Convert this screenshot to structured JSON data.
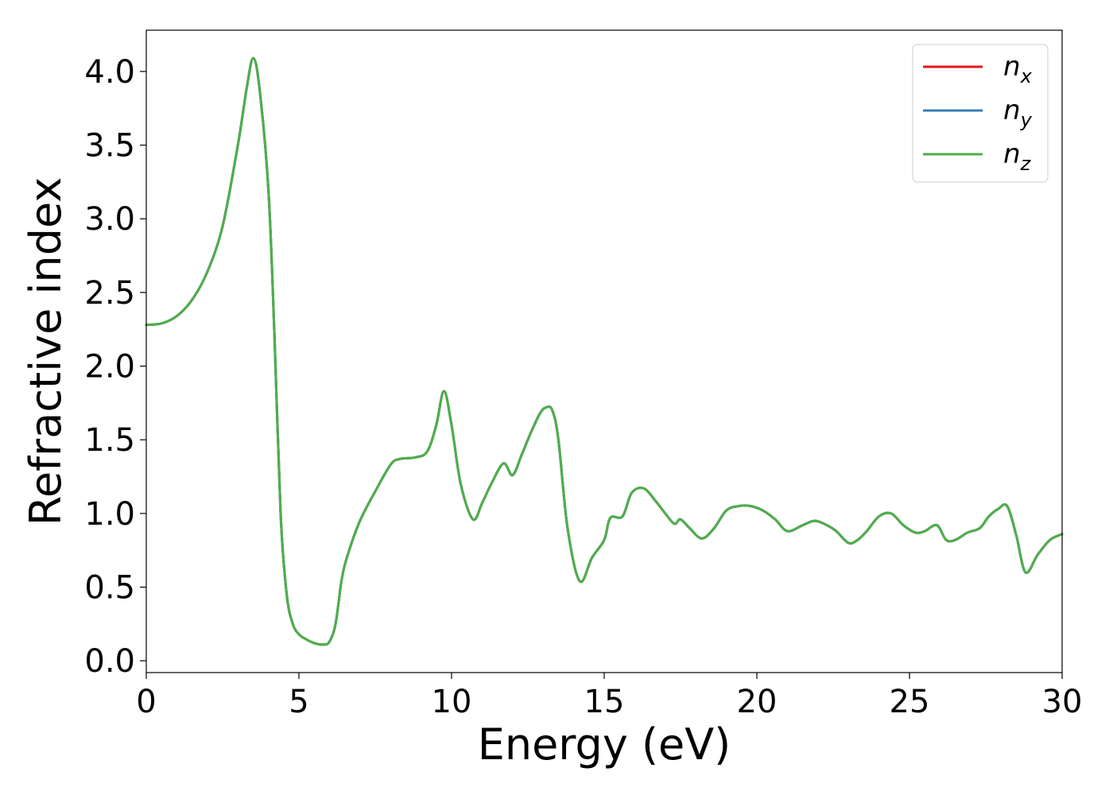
{
  "chart_data": {
    "type": "line",
    "title": "",
    "xlabel": "Energy (eV)",
    "ylabel": "Refractive index",
    "xlim": [
      0,
      30
    ],
    "ylim": [
      -0.08,
      4.28
    ],
    "x_ticks": [
      0,
      5,
      10,
      15,
      20,
      25,
      30
    ],
    "x_tick_labels": [
      "0",
      "5",
      "10",
      "15",
      "20",
      "25",
      "30"
    ],
    "y_ticks": [
      0.0,
      0.5,
      1.0,
      1.5,
      2.0,
      2.5,
      3.0,
      3.5,
      4.0
    ],
    "y_tick_labels": [
      "0.0",
      "0.5",
      "1.0",
      "1.5",
      "2.0",
      "2.5",
      "3.0",
      "3.5",
      "4.0"
    ],
    "grid": false,
    "legend_position": "top-right",
    "series": [
      {
        "name": "n_x",
        "label_base": "n",
        "label_sub": "x",
        "color": "#e41a1c",
        "x": [
          0,
          0.5,
          1,
          1.5,
          2,
          2.5,
          3,
          3.3,
          3.5,
          3.7,
          4,
          4.2,
          4.4,
          4.6,
          4.8,
          5,
          5.2,
          5.5,
          5.8,
          6,
          6.2,
          6.4,
          6.6,
          7,
          7.5,
          8,
          8.3,
          8.8,
          9.2,
          9.5,
          9.75,
          10,
          10.3,
          10.7,
          11,
          11.3,
          11.7,
          12,
          12.3,
          12.6,
          12.9,
          13.1,
          13.3,
          13.5,
          13.8,
          14.2,
          14.6,
          15,
          15.2,
          15.6,
          15.9,
          16.3,
          16.7,
          17,
          17.3,
          17.5,
          17.8,
          18.2,
          18.6,
          19,
          19.4,
          19.8,
          20.2,
          20.6,
          21,
          21.5,
          21.9,
          22.3,
          22.6,
          23,
          23.3,
          23.6,
          24,
          24.4,
          24.8,
          25.2,
          25.5,
          25.9,
          26.2,
          26.5,
          26.9,
          27.3,
          27.6,
          27.9,
          28.2,
          28.5,
          28.8,
          29.2,
          29.6,
          30
        ],
        "y": [
          2.28,
          2.29,
          2.34,
          2.45,
          2.64,
          2.95,
          3.5,
          3.9,
          4.09,
          3.9,
          3.2,
          2.2,
          1.0,
          0.45,
          0.25,
          0.18,
          0.15,
          0.12,
          0.11,
          0.13,
          0.25,
          0.55,
          0.72,
          0.95,
          1.15,
          1.33,
          1.37,
          1.38,
          1.42,
          1.6,
          1.83,
          1.6,
          1.2,
          0.96,
          1.07,
          1.2,
          1.34,
          1.26,
          1.4,
          1.55,
          1.68,
          1.72,
          1.7,
          1.5,
          0.9,
          0.54,
          0.7,
          0.82,
          0.97,
          0.98,
          1.14,
          1.17,
          1.08,
          1.0,
          0.93,
          0.96,
          0.9,
          0.83,
          0.9,
          1.02,
          1.05,
          1.05,
          1.02,
          0.96,
          0.88,
          0.92,
          0.95,
          0.92,
          0.88,
          0.8,
          0.82,
          0.88,
          0.98,
          1.0,
          0.92,
          0.87,
          0.88,
          0.92,
          0.82,
          0.82,
          0.87,
          0.9,
          0.98,
          1.03,
          1.05,
          0.85,
          0.6,
          0.72,
          0.82,
          0.86
        ]
      },
      {
        "name": "n_y",
        "label_base": "n",
        "label_sub": "y",
        "color": "#377eb8",
        "x": [
          0,
          0.5,
          1,
          1.5,
          2,
          2.5,
          3,
          3.3,
          3.5,
          3.7,
          4,
          4.2,
          4.4,
          4.6,
          4.8,
          5,
          5.2,
          5.5,
          5.8,
          6,
          6.2,
          6.4,
          6.6,
          7,
          7.5,
          8,
          8.3,
          8.8,
          9.2,
          9.5,
          9.75,
          10,
          10.3,
          10.7,
          11,
          11.3,
          11.7,
          12,
          12.3,
          12.6,
          12.9,
          13.1,
          13.3,
          13.5,
          13.8,
          14.2,
          14.6,
          15,
          15.2,
          15.6,
          15.9,
          16.3,
          16.7,
          17,
          17.3,
          17.5,
          17.8,
          18.2,
          18.6,
          19,
          19.4,
          19.8,
          20.2,
          20.6,
          21,
          21.5,
          21.9,
          22.3,
          22.6,
          23,
          23.3,
          23.6,
          24,
          24.4,
          24.8,
          25.2,
          25.5,
          25.9,
          26.2,
          26.5,
          26.9,
          27.3,
          27.6,
          27.9,
          28.2,
          28.5,
          28.8,
          29.2,
          29.6,
          30
        ],
        "y": [
          2.28,
          2.29,
          2.34,
          2.45,
          2.64,
          2.95,
          3.5,
          3.9,
          4.09,
          3.9,
          3.2,
          2.2,
          1.0,
          0.45,
          0.25,
          0.18,
          0.15,
          0.12,
          0.11,
          0.13,
          0.25,
          0.55,
          0.72,
          0.95,
          1.15,
          1.33,
          1.37,
          1.38,
          1.42,
          1.6,
          1.83,
          1.6,
          1.2,
          0.96,
          1.07,
          1.2,
          1.34,
          1.26,
          1.4,
          1.55,
          1.68,
          1.72,
          1.7,
          1.5,
          0.9,
          0.54,
          0.7,
          0.82,
          0.97,
          0.98,
          1.14,
          1.17,
          1.08,
          1.0,
          0.93,
          0.96,
          0.9,
          0.83,
          0.9,
          1.02,
          1.05,
          1.05,
          1.02,
          0.96,
          0.88,
          0.92,
          0.95,
          0.92,
          0.88,
          0.8,
          0.82,
          0.88,
          0.98,
          1.0,
          0.92,
          0.87,
          0.88,
          0.92,
          0.82,
          0.82,
          0.87,
          0.9,
          0.98,
          1.03,
          1.05,
          0.85,
          0.6,
          0.72,
          0.82,
          0.86
        ]
      },
      {
        "name": "n_z",
        "label_base": "n",
        "label_sub": "z",
        "color": "#4daf4a",
        "x": [
          0,
          0.5,
          1,
          1.5,
          2,
          2.5,
          3,
          3.3,
          3.5,
          3.7,
          4,
          4.2,
          4.4,
          4.6,
          4.8,
          5,
          5.2,
          5.5,
          5.8,
          6,
          6.2,
          6.4,
          6.6,
          7,
          7.5,
          8,
          8.3,
          8.8,
          9.2,
          9.5,
          9.75,
          10,
          10.3,
          10.7,
          11,
          11.3,
          11.7,
          12,
          12.3,
          12.6,
          12.9,
          13.1,
          13.3,
          13.5,
          13.8,
          14.2,
          14.6,
          15,
          15.2,
          15.6,
          15.9,
          16.3,
          16.7,
          17,
          17.3,
          17.5,
          17.8,
          18.2,
          18.6,
          19,
          19.4,
          19.8,
          20.2,
          20.6,
          21,
          21.5,
          21.9,
          22.3,
          22.6,
          23,
          23.3,
          23.6,
          24,
          24.4,
          24.8,
          25.2,
          25.5,
          25.9,
          26.2,
          26.5,
          26.9,
          27.3,
          27.6,
          27.9,
          28.2,
          28.5,
          28.8,
          29.2,
          29.6,
          30
        ],
        "y": [
          2.28,
          2.29,
          2.34,
          2.45,
          2.64,
          2.95,
          3.5,
          3.9,
          4.09,
          3.9,
          3.2,
          2.2,
          1.0,
          0.45,
          0.25,
          0.18,
          0.15,
          0.12,
          0.11,
          0.13,
          0.25,
          0.55,
          0.72,
          0.95,
          1.15,
          1.33,
          1.37,
          1.38,
          1.42,
          1.6,
          1.83,
          1.6,
          1.2,
          0.96,
          1.07,
          1.2,
          1.34,
          1.26,
          1.4,
          1.55,
          1.68,
          1.72,
          1.7,
          1.5,
          0.9,
          0.54,
          0.7,
          0.82,
          0.97,
          0.98,
          1.14,
          1.17,
          1.08,
          1.0,
          0.93,
          0.96,
          0.9,
          0.83,
          0.9,
          1.02,
          1.05,
          1.05,
          1.02,
          0.96,
          0.88,
          0.92,
          0.95,
          0.92,
          0.88,
          0.8,
          0.82,
          0.88,
          0.98,
          1.0,
          0.92,
          0.87,
          0.88,
          0.92,
          0.82,
          0.82,
          0.87,
          0.9,
          0.98,
          1.03,
          1.05,
          0.85,
          0.6,
          0.72,
          0.82,
          0.86
        ]
      }
    ]
  }
}
